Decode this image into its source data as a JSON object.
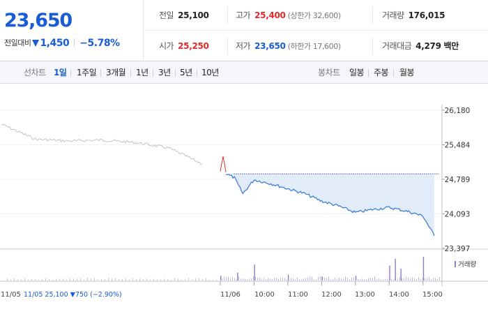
{
  "quote": {
    "price": "23,650",
    "change_label": "전일대비",
    "change_abs": "1,450",
    "change_pct": "−5.78%",
    "colors": {
      "down": "#1a5bd6",
      "up": "#e22929"
    },
    "fields": {
      "prev_close": {
        "label": "전일",
        "value": "25,100"
      },
      "high": {
        "label": "고가",
        "value": "25,400",
        "sub": "(상한가 32,600)"
      },
      "volume": {
        "label": "거래량",
        "value": "176,015"
      },
      "open": {
        "label": "시가",
        "value": "25,250"
      },
      "low": {
        "label": "저가",
        "value": "23,650",
        "sub": "(하한가 17,600)"
      },
      "trade_value": {
        "label": "거래대금",
        "value": "4,279 백만"
      }
    }
  },
  "toolbar": {
    "line_chart_label": "선차트",
    "periods": [
      "1일",
      "1주일",
      "3개월",
      "1년",
      "3년",
      "5년",
      "10년"
    ],
    "active_period": "1일",
    "candle_label": "봉차트",
    "candle_periods": [
      "일봉",
      "주봉",
      "월봉"
    ]
  },
  "chart_data": {
    "type": "line",
    "y_ticks": [
      "26,180",
      "25,484",
      "24,789",
      "24,093",
      "23,397"
    ],
    "ylim": [
      23397,
      26180
    ],
    "x_labels": [
      "11/05",
      "11/06",
      "10:00",
      "11:00",
      "12:00",
      "13:00",
      "14:00",
      "15:00"
    ],
    "reference_label": "11/05  25,100 ▼750 (−2.90%)",
    "reference_price": 24900,
    "volume_label": "거래량",
    "series": [
      {
        "color": "#c4c4c4",
        "x": [
          "11/05 09:00",
          "11/05 10:00",
          "11/05 11:00",
          "11/05 12:00",
          "11/05 13:00",
          "11/05 14:00",
          "11/05 15:00"
        ],
        "values": [
          25900,
          25600,
          25560,
          25580,
          25530,
          25420,
          25100
        ]
      },
      {
        "color": "#e22929",
        "x": [
          "11/06 09:00",
          "11/06 09:05",
          "11/06 09:10"
        ],
        "values": [
          24950,
          25250,
          24930
        ]
      },
      {
        "color": "#3f7fd8",
        "x": [
          "11/06 09:10",
          "11/06 09:25",
          "11/06 09:40",
          "11/06 10:00",
          "11/06 10:30",
          "11/06 11:00",
          "11/06 11:30",
          "11/06 12:00",
          "11/06 12:30",
          "11/06 13:00",
          "11/06 13:30",
          "11/06 14:00",
          "11/06 14:30",
          "11/06 15:00",
          "11/06 15:20"
        ],
        "values": [
          24900,
          24820,
          24500,
          24780,
          24700,
          24600,
          24500,
          24350,
          24250,
          24120,
          24180,
          24220,
          24150,
          24050,
          23650
        ]
      }
    ],
    "volume": {
      "color": "#8f7ac4",
      "x": [
        "11/06 09:00",
        "11/06 09:30",
        "11/06 10:00",
        "11/06 11:00",
        "11/06 12:00",
        "11/06 13:00",
        "11/06 14:00",
        "11/06 14:10",
        "11/06 14:20",
        "11/06 15:00"
      ],
      "values": [
        12,
        20,
        40,
        15,
        10,
        12,
        38,
        55,
        30,
        60
      ]
    }
  }
}
